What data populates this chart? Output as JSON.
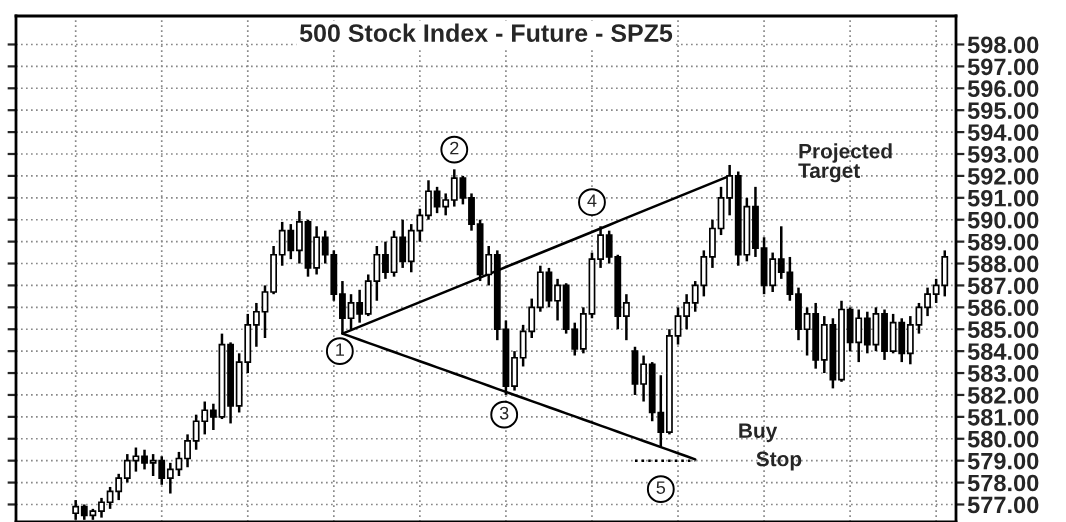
{
  "chart_data": {
    "type": "candlestick",
    "title": "500 Stock Index - Future - SPZ5",
    "categories": [
      null,
      null,
      null,
      null,
      null,
      null,
      null,
      null,
      null,
      null,
      null,
      null,
      null,
      null,
      null,
      null,
      null,
      null,
      null,
      null,
      null,
      null,
      null,
      null,
      null,
      null,
      null,
      null,
      null,
      null,
      null,
      null,
      null,
      null,
      null,
      null,
      null,
      null,
      null,
      null,
      null,
      null,
      null,
      null,
      null,
      null,
      null,
      null,
      null,
      null,
      null,
      null,
      null,
      null,
      null,
      null,
      null,
      null,
      null,
      null,
      null,
      null,
      null,
      null,
      null,
      null,
      null,
      null,
      null,
      null,
      null,
      null,
      null,
      null,
      null,
      null,
      null,
      null,
      null,
      null,
      null,
      null,
      null,
      null,
      null,
      null,
      null,
      null,
      null,
      null,
      null,
      null,
      null,
      null,
      null,
      null,
      null,
      null,
      null,
      null,
      null,
      null
    ],
    "ohlc": [
      [
        576.6,
        577.2,
        576.3,
        576.9
      ],
      [
        576.9,
        577.0,
        576.3,
        576.5
      ],
      [
        576.5,
        576.8,
        576.3,
        576.7
      ],
      [
        576.7,
        577.3,
        576.4,
        577.1
      ],
      [
        577.1,
        577.8,
        576.8,
        577.6
      ],
      [
        577.6,
        578.4,
        577.2,
        578.2
      ],
      [
        578.2,
        579.3,
        578.0,
        579.0
      ],
      [
        579.0,
        579.6,
        578.5,
        579.2
      ],
      [
        579.2,
        579.5,
        578.6,
        578.9
      ],
      [
        578.9,
        579.3,
        578.3,
        579.0
      ],
      [
        579.0,
        579.2,
        577.9,
        578.2
      ],
      [
        578.2,
        578.9,
        577.5,
        578.6
      ],
      [
        578.6,
        579.4,
        578.3,
        579.1
      ],
      [
        579.1,
        580.2,
        578.7,
        579.9
      ],
      [
        579.9,
        581.1,
        579.5,
        580.8
      ],
      [
        580.8,
        581.7,
        580.2,
        581.3
      ],
      [
        581.3,
        581.6,
        580.4,
        581.0
      ],
      [
        581.0,
        584.8,
        580.9,
        584.3
      ],
      [
        584.3,
        584.4,
        580.7,
        581.5
      ],
      [
        581.5,
        583.9,
        581.2,
        583.5
      ],
      [
        583.5,
        585.7,
        583.0,
        585.2
      ],
      [
        585.2,
        586.2,
        584.2,
        585.8
      ],
      [
        585.8,
        587.0,
        584.6,
        586.7
      ],
      [
        586.7,
        588.8,
        586.6,
        588.4
      ],
      [
        588.4,
        589.9,
        587.9,
        589.5
      ],
      [
        589.5,
        589.8,
        588.2,
        588.6
      ],
      [
        588.6,
        590.4,
        588.0,
        589.9
      ],
      [
        589.9,
        590.0,
        587.4,
        587.8
      ],
      [
        587.8,
        589.7,
        587.5,
        589.2
      ],
      [
        589.2,
        589.5,
        588.0,
        588.4
      ],
      [
        588.4,
        588.6,
        586.3,
        586.6
      ],
      [
        586.6,
        587.2,
        584.8,
        585.5
      ],
      [
        585.5,
        586.6,
        585.0,
        586.2
      ],
      [
        586.2,
        586.8,
        585.3,
        585.7
      ],
      [
        585.7,
        587.5,
        585.6,
        587.2
      ],
      [
        587.2,
        588.8,
        586.3,
        588.4
      ],
      [
        588.4,
        589.0,
        587.3,
        587.6
      ],
      [
        587.6,
        589.5,
        587.4,
        589.2
      ],
      [
        589.2,
        590.0,
        587.8,
        588.1
      ],
      [
        588.1,
        589.8,
        587.6,
        589.5
      ],
      [
        589.5,
        590.5,
        589.0,
        590.2
      ],
      [
        590.2,
        591.8,
        590.0,
        591.3
      ],
      [
        591.3,
        591.5,
        590.3,
        590.6
      ],
      [
        590.6,
        591.2,
        590.2,
        590.9
      ],
      [
        590.9,
        592.3,
        590.6,
        591.9
      ],
      [
        591.9,
        592.0,
        590.7,
        591.0
      ],
      [
        591.0,
        591.2,
        589.5,
        589.8
      ],
      [
        589.8,
        590.0,
        587.2,
        587.5
      ],
      [
        587.5,
        588.8,
        587.0,
        588.4
      ],
      [
        588.4,
        588.6,
        584.5,
        585.0
      ],
      [
        585.0,
        585.4,
        582.0,
        582.4
      ],
      [
        582.4,
        584.0,
        582.2,
        583.7
      ],
      [
        583.7,
        585.2,
        583.3,
        584.9
      ],
      [
        584.9,
        586.4,
        584.6,
        586.0
      ],
      [
        586.0,
        587.9,
        585.8,
        587.6
      ],
      [
        587.6,
        587.8,
        586.0,
        586.3
      ],
      [
        586.3,
        587.3,
        585.4,
        587.0
      ],
      [
        587.0,
        587.1,
        584.8,
        585.0
      ],
      [
        585.0,
        585.3,
        583.8,
        584.1
      ],
      [
        584.1,
        586.0,
        583.9,
        585.7
      ],
      [
        585.7,
        588.5,
        585.5,
        588.2
      ],
      [
        588.2,
        589.7,
        587.8,
        589.3
      ],
      [
        589.3,
        589.5,
        588.0,
        588.3
      ],
      [
        588.3,
        588.4,
        585.0,
        585.6
      ],
      [
        585.6,
        586.6,
        584.5,
        586.2
      ],
      [
        584.0,
        584.2,
        582.0,
        582.5
      ],
      [
        582.5,
        583.8,
        581.7,
        583.4
      ],
      [
        583.4,
        583.5,
        580.8,
        581.2
      ],
      [
        581.2,
        582.9,
        579.6,
        580.3
      ],
      [
        580.3,
        585.0,
        580.2,
        584.7
      ],
      [
        584.7,
        586.0,
        584.3,
        585.6
      ],
      [
        585.6,
        586.6,
        585.0,
        586.2
      ],
      [
        586.2,
        587.2,
        585.8,
        587.0
      ],
      [
        587.0,
        588.6,
        586.5,
        588.3
      ],
      [
        588.3,
        590.0,
        587.8,
        589.6
      ],
      [
        589.6,
        591.5,
        589.3,
        591.0
      ],
      [
        591.0,
        592.5,
        590.2,
        592.0
      ],
      [
        592.0,
        592.2,
        587.9,
        588.4
      ],
      [
        588.4,
        591.0,
        588.1,
        590.6
      ],
      [
        590.6,
        591.5,
        588.3,
        588.7
      ],
      [
        588.7,
        589.2,
        586.6,
        587.0
      ],
      [
        587.0,
        588.5,
        586.7,
        588.2
      ],
      [
        588.2,
        589.7,
        587.3,
        587.6
      ],
      [
        587.6,
        588.3,
        586.3,
        586.6
      ],
      [
        586.6,
        586.9,
        584.5,
        585.0
      ],
      [
        585.0,
        586.0,
        583.8,
        585.7
      ],
      [
        585.7,
        586.2,
        583.2,
        583.6
      ],
      [
        583.6,
        585.6,
        583.0,
        585.2
      ],
      [
        585.2,
        585.5,
        582.3,
        582.7
      ],
      [
        582.7,
        586.3,
        582.6,
        585.9
      ],
      [
        585.9,
        586.0,
        584.0,
        584.4
      ],
      [
        584.4,
        585.9,
        583.5,
        585.5
      ],
      [
        585.5,
        585.8,
        583.9,
        584.3
      ],
      [
        584.3,
        586.0,
        584.0,
        585.7
      ],
      [
        585.7,
        585.9,
        583.6,
        584.0
      ],
      [
        584.0,
        585.7,
        583.9,
        585.3
      ],
      [
        585.3,
        585.5,
        583.5,
        583.9
      ],
      [
        583.9,
        585.6,
        583.4,
        585.2
      ],
      [
        585.2,
        586.2,
        584.8,
        586.0
      ],
      [
        586.0,
        586.9,
        585.6,
        586.6
      ],
      [
        586.6,
        587.3,
        586.2,
        587.0
      ],
      [
        587.0,
        588.6,
        586.5,
        588.3
      ]
    ],
    "color": "#000000",
    "series": [
      {
        "type": "line",
        "values": [
          null,
          null,
          null,
          null,
          null,
          null,
          null,
          null,
          null,
          null,
          null,
          null,
          null,
          null,
          null,
          null,
          null,
          null,
          null,
          null,
          null,
          null,
          null,
          null,
          null,
          null,
          null,
          null,
          null,
          null,
          null,
          584.8,
          584.96,
          585.12,
          585.28,
          585.44,
          585.6,
          585.76,
          585.92,
          586.08,
          586.24,
          586.4,
          586.56,
          586.72,
          586.88,
          587.04,
          587.2,
          587.36,
          587.52,
          587.68,
          587.84,
          588.0,
          588.16,
          588.32,
          588.48,
          588.64,
          588.8,
          588.96,
          589.12,
          589.28,
          589.44,
          589.6,
          589.76,
          589.92,
          590.08,
          590.24,
          590.4,
          590.56,
          590.72,
          590.88,
          591.04,
          591.2,
          591.36,
          591.52,
          591.68,
          591.84,
          592.0,
          null,
          null,
          null,
          null,
          null,
          null,
          null,
          null,
          null,
          null,
          null,
          null,
          null,
          null,
          null,
          null,
          null,
          null,
          null,
          null,
          null,
          null,
          null,
          null,
          null
        ],
        "color": "#000000",
        "line_style": "solid"
      },
      {
        "type": "line",
        "values": [
          null,
          null,
          null,
          null,
          null,
          null,
          null,
          null,
          null,
          null,
          null,
          null,
          null,
          null,
          null,
          null,
          null,
          null,
          null,
          null,
          null,
          null,
          null,
          null,
          null,
          null,
          null,
          null,
          null,
          null,
          null,
          584.8,
          584.66,
          584.52,
          584.38,
          584.24,
          584.1,
          583.96,
          583.82,
          583.68,
          583.54,
          583.4,
          583.26,
          583.12,
          582.98,
          582.84,
          582.7,
          582.56,
          582.42,
          582.28,
          582.14,
          582.0,
          581.86,
          581.72,
          581.58,
          581.44,
          581.3,
          581.16,
          581.02,
          580.88,
          580.74,
          580.6,
          580.46,
          580.32,
          580.18,
          580.04,
          579.9,
          579.76,
          579.62,
          579.48,
          579.34,
          579.2,
          579.06,
          null,
          null,
          null,
          null,
          null,
          null,
          null,
          null,
          null,
          null,
          null,
          null,
          null,
          null,
          null,
          null,
          null,
          null,
          null,
          null,
          null,
          null,
          null,
          null,
          null,
          null,
          null,
          null,
          null
        ],
        "color": "#000000",
        "line_style": "solid"
      },
      {
        "type": "line",
        "values": [
          null,
          null,
          null,
          null,
          null,
          null,
          null,
          null,
          null,
          null,
          null,
          null,
          null,
          null,
          null,
          null,
          null,
          null,
          null,
          null,
          null,
          null,
          null,
          null,
          null,
          null,
          null,
          null,
          null,
          null,
          null,
          null,
          null,
          null,
          null,
          null,
          null,
          null,
          null,
          null,
          null,
          null,
          null,
          null,
          null,
          null,
          null,
          null,
          null,
          null,
          null,
          null,
          null,
          null,
          null,
          null,
          null,
          null,
          null,
          null,
          null,
          null,
          null,
          null,
          null,
          579.0,
          579.0,
          579.0,
          579.0,
          579.0,
          579.0,
          579.0,
          579.0,
          null,
          null,
          null,
          null,
          null,
          null,
          null,
          null,
          null,
          null,
          null,
          null,
          null,
          null,
          null,
          null,
          null,
          null,
          null,
          null,
          null,
          null,
          null,
          null,
          null,
          null,
          null,
          null,
          null
        ],
        "color": "#000000",
        "line_style": "dotted"
      }
    ],
    "annotations": [
      {
        "text": "1",
        "y": 584.0
      },
      {
        "text": "2",
        "y": 593.2
      },
      {
        "text": "3",
        "y": 581.1
      },
      {
        "text": "4",
        "y": 590.8
      },
      {
        "text": "5",
        "y": 577.7
      },
      "Projected\nTarget",
      "Buy",
      "Stop"
    ],
    "ylim": [
      576.2,
      599.3
    ],
    "yticks": [
      {
        "value": 577,
        "label": "577.00"
      },
      {
        "value": 578,
        "label": "578.00"
      },
      {
        "value": 579,
        "label": "579.00"
      },
      {
        "value": 580,
        "label": "580.00"
      },
      {
        "value": 581,
        "label": "581.00"
      },
      {
        "value": 582,
        "label": "582.00"
      },
      {
        "value": 583,
        "label": "583.00"
      },
      {
        "value": 584,
        "label": "584.00"
      },
      {
        "value": 585,
        "label": "585.00"
      },
      {
        "value": 586,
        "label": "586.00"
      },
      {
        "value": 587,
        "label": "587.00"
      },
      {
        "value": 588,
        "label": "588.00"
      },
      {
        "value": 589,
        "label": "589.00"
      },
      {
        "value": 590,
        "label": "590.00"
      },
      {
        "value": 591,
        "label": "591.00"
      },
      {
        "value": 592,
        "label": "592.00"
      },
      {
        "value": 593,
        "label": "593.00"
      },
      {
        "value": 594,
        "label": "594.00"
      },
      {
        "value": 595,
        "label": "595.00"
      },
      {
        "value": 596,
        "label": "596.00"
      },
      {
        "value": 597,
        "label": "597.00"
      },
      {
        "value": 598,
        "label": "598.00"
      }
    ],
    "grid": true,
    "tick_labels": "y"
  }
}
